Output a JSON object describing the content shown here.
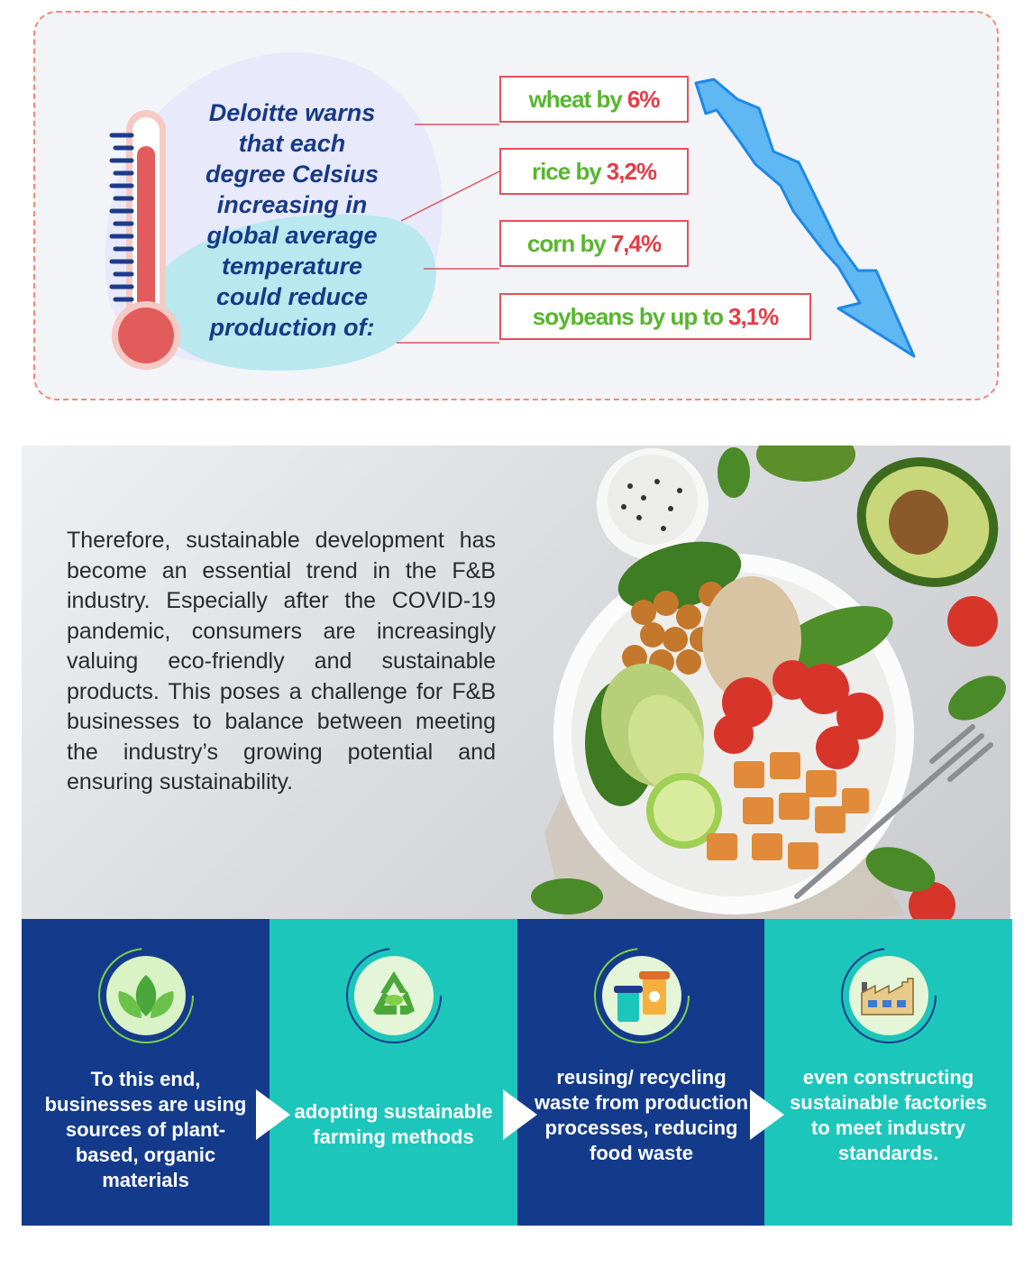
{
  "warning": {
    "line1": "Deloitte warns",
    "line2": "that each",
    "line3": "degree Celsius",
    "line4": "increasing in",
    "line5": "global average",
    "line6": "temperature",
    "line7": "could reduce",
    "line8": "production of:"
  },
  "stats": [
    {
      "crop": "wheat by",
      "pct": "6%"
    },
    {
      "crop": "rice by",
      "pct": "3,2%"
    },
    {
      "crop": "corn by",
      "pct": "7,4%"
    },
    {
      "crop": "soybeans by up to",
      "pct": "3,1%"
    }
  ],
  "body_text": "Therefore, sustainable development has become an essential trend in the F&B industry. Especially after the COVID-19 pandemic, consumers are increasingly valuing eco-friendly and sustainable products. This poses a challenge for F&B businesses to balance between meeting the industry’s growing potential and ensuring sustainability.",
  "steps": [
    {
      "text": "To this end, businesses are using sources of plant-based, organic materials",
      "icon": "leaves-icon"
    },
    {
      "text": "adopting sustainable farming methods",
      "icon": "recycle-icon"
    },
    {
      "text": "reusing/ recycling waste from production processes, reducing food waste",
      "icon": "cups-icon"
    },
    {
      "text": "even constructing sustainable factories to meet industry standards.",
      "icon": "factory-icon"
    }
  ],
  "colors": {
    "navy": "#143b8b",
    "teal": "#1cc6bb",
    "red": "#e63b46",
    "green": "#57b62e"
  }
}
